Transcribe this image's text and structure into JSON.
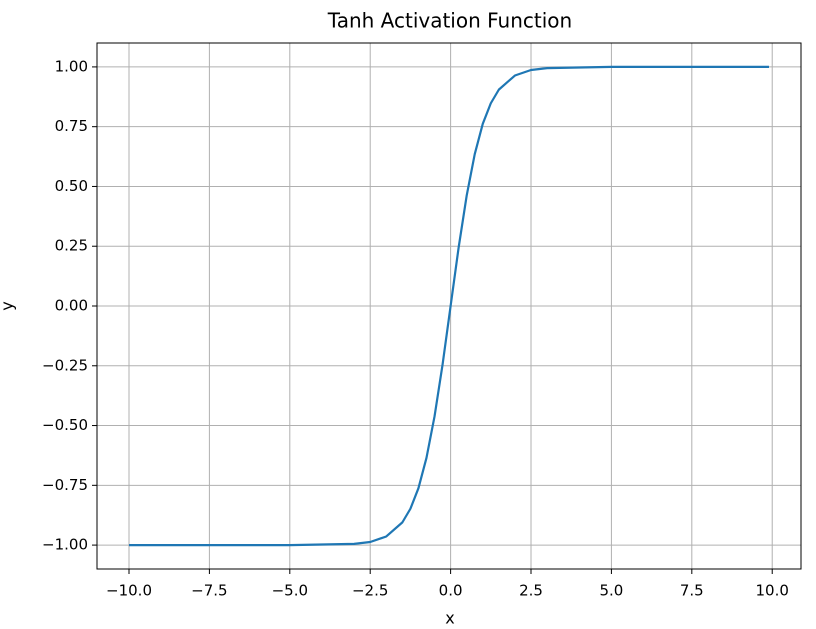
{
  "chart_data": {
    "type": "line",
    "title": "Tanh Activation Function",
    "x_label": "x",
    "y_label": "y",
    "x": [
      -10,
      -5,
      -3,
      -2.5,
      -2,
      -1.5,
      -1.25,
      -1,
      -0.75,
      -0.5,
      -0.25,
      0,
      0.25,
      0.5,
      0.75,
      1,
      1.25,
      1.5,
      2,
      2.5,
      3,
      5,
      9.9
    ],
    "values": [
      -1,
      -1,
      -0.995,
      -0.987,
      -0.964,
      -0.905,
      -0.848,
      -0.762,
      -0.635,
      -0.462,
      -0.245,
      0,
      0.245,
      0.462,
      0.635,
      0.762,
      0.848,
      0.905,
      0.964,
      0.987,
      0.995,
      1,
      1
    ],
    "color": "#1f77b4",
    "xlim": [
      -10.995,
      10.895
    ],
    "xticks": [
      {
        "value": -10,
        "label": "−10.0"
      },
      {
        "value": -7.5,
        "label": "−7.5"
      },
      {
        "value": -5,
        "label": "−5.0"
      },
      {
        "value": -2.5,
        "label": "−2.5"
      },
      {
        "value": 0,
        "label": "0.0"
      },
      2.5,
      {
        "value": 5,
        "label": "5.0"
      },
      7.5,
      {
        "value": 10,
        "label": "10.0"
      }
    ],
    "ylim": [
      -1.1,
      1.1
    ],
    "yticks": [
      {
        "value": -1,
        "label": "−1.00"
      },
      {
        "value": -0.75,
        "label": "−0.75"
      },
      {
        "value": -0.5,
        "label": "−0.50"
      },
      {
        "value": -0.25,
        "label": "−0.25"
      },
      {
        "value": 0,
        "label": "0.00"
      },
      0.25,
      {
        "value": 0.5,
        "label": "0.50"
      },
      0.75,
      {
        "value": 1,
        "label": "1.00"
      }
    ],
    "grid": true
  }
}
